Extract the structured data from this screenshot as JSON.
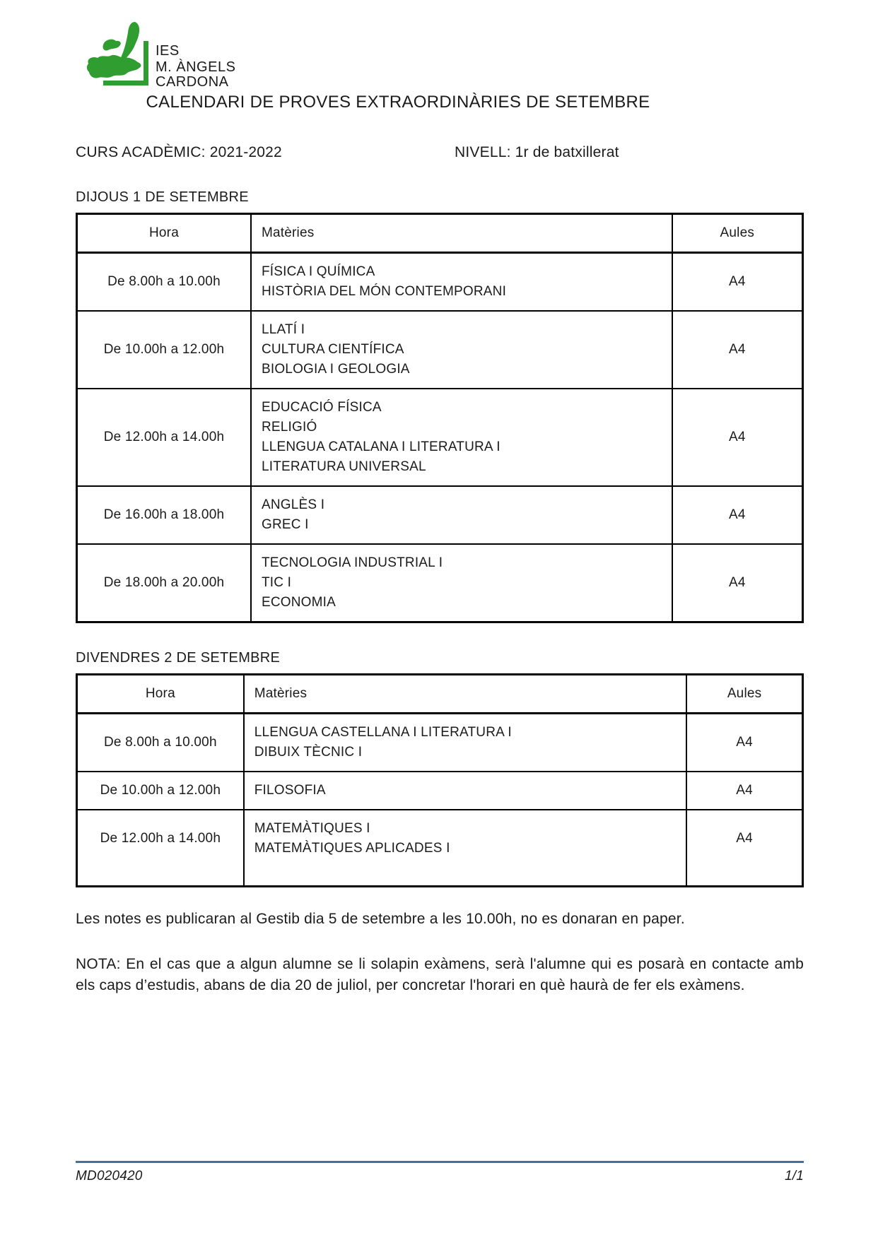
{
  "logo": {
    "lines": [
      "IES",
      "M. ÀNGELS",
      "CARDONA"
    ],
    "color": "#2f9d2f"
  },
  "title": "CALENDARI DE PROVES EXTRAORDINÀRIES DE SETEMBRE",
  "meta": {
    "curs": "CURS ACADÈMIC: 2021-2022",
    "nivell": "NIVELL: 1r de batxillerat"
  },
  "sections": [
    {
      "heading": "DIJOUS 1 DE SETEMBRE",
      "columns": [
        "Hora",
        "Matèries",
        "Aules"
      ],
      "rows": [
        {
          "hora": "De 8.00h a 10.00h",
          "materies": [
            "FÍSICA I QUÍMICA",
            "HISTÒRIA DEL MÓN CONTEMPORANI"
          ],
          "aula": "A4"
        },
        {
          "hora": "De 10.00h a 12.00h",
          "materies": [
            "LLATÍ I",
            "CULTURA CIENTÍFICA",
            "BIOLOGIA I GEOLOGIA"
          ],
          "aula": "A4"
        },
        {
          "hora": "De 12.00h a 14.00h",
          "materies": [
            "EDUCACIÓ FÍSICA",
            "RELIGIÓ",
            "LLENGUA CATALANA I LITERATURA I",
            "LITERATURA UNIVERSAL"
          ],
          "aula": "A4"
        },
        {
          "hora": "De 16.00h a 18.00h",
          "materies": [
            "ANGLÈS I",
            "GREC I"
          ],
          "aula": "A4"
        },
        {
          "hora": "De 18.00h a 20.00h",
          "materies": [
            "TECNOLOGIA INDUSTRIAL I",
            "TIC I",
            "ECONOMIA"
          ],
          "aula": "A4"
        }
      ]
    },
    {
      "heading": "DIVENDRES 2 DE SETEMBRE",
      "columns": [
        "Hora",
        "Matèries",
        "Aules"
      ],
      "rows": [
        {
          "hora": "De 8.00h a 10.00h",
          "materies": [
            "LLENGUA CASTELLANA I LITERATURA I",
            "DIBUIX TÈCNIC I"
          ],
          "aula": "A4"
        },
        {
          "hora": "De 10.00h a 12.00h",
          "materies": [
            "FILOSOFIA"
          ],
          "aula": "A4"
        },
        {
          "hora": "De 12.00h a 14.00h",
          "materies": [
            "MATEMÀTIQUES I",
            "MATEMÀTIQUES APLICADES I"
          ],
          "aula": "A4"
        }
      ]
    }
  ],
  "notes": {
    "publication": "Les notes es publicaran al Gestib dia 5 de setembre a les 10.00h, no es donaran en paper.",
    "nota": "NOTA: En el cas que a algun alumne se li solapin exàmens, serà l'alumne qui es posarà en contacte amb els caps d’estudis, abans de dia 20 de juliol, per concretar l'horari en què haurà de fer els exàmens."
  },
  "footer": {
    "code": "MD020420",
    "page": "1/1",
    "rule_color": "#41719c"
  }
}
